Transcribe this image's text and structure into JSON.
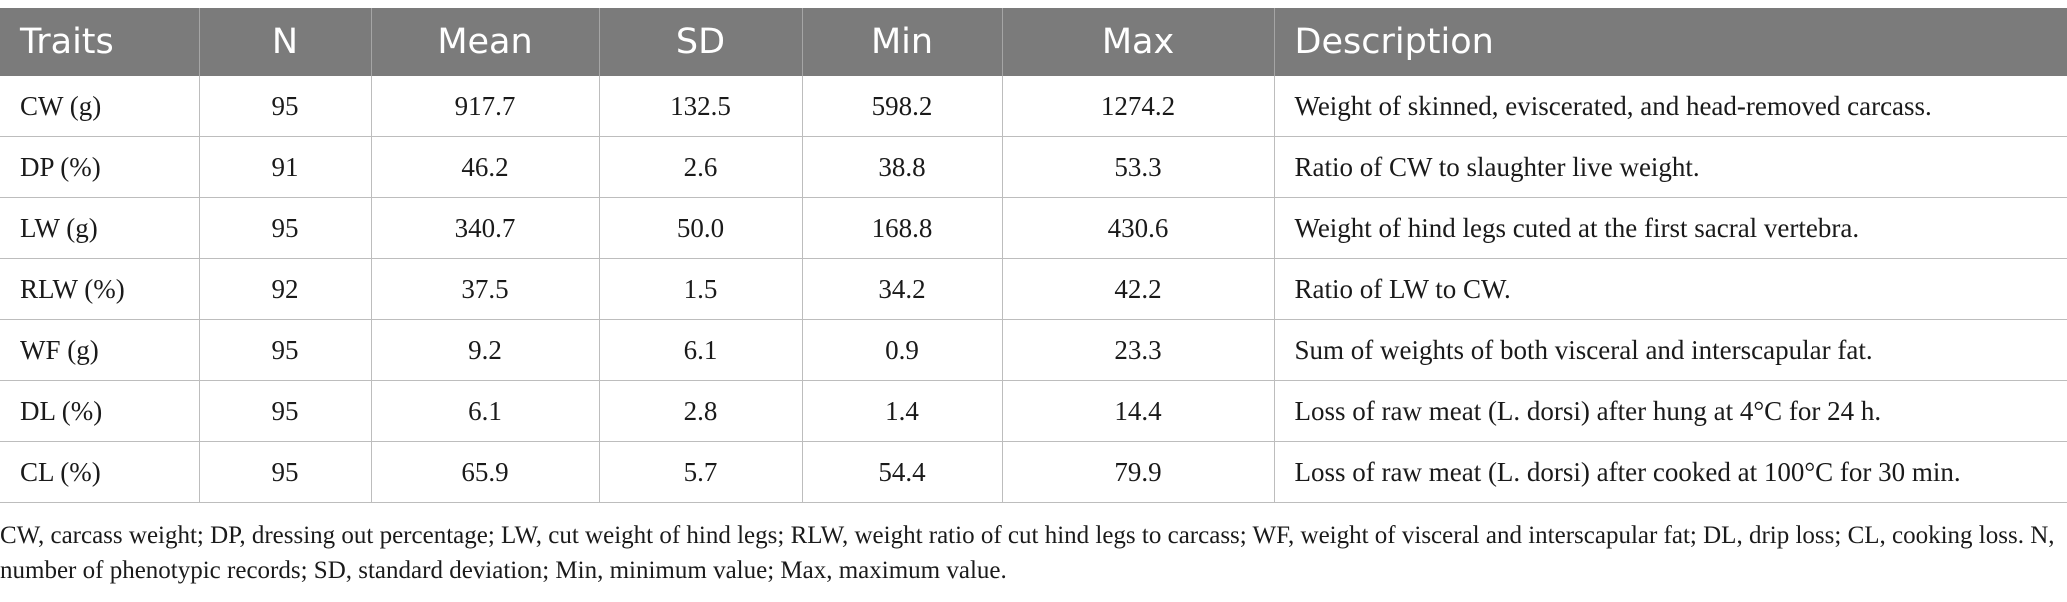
{
  "table": {
    "headers": [
      "Traits",
      "N",
      "Mean",
      "SD",
      "Min",
      "Max",
      "Description"
    ],
    "rows": [
      [
        "CW (g)",
        "95",
        "917.7",
        "132.5",
        "598.2",
        "1274.2",
        "Weight of skinned, eviscerated, and head-removed carcass."
      ],
      [
        "DP (%)",
        "91",
        "46.2",
        "2.6",
        "38.8",
        "53.3",
        "Ratio of CW to slaughter live weight."
      ],
      [
        "LW (g)",
        "95",
        "340.7",
        "50.0",
        "168.8",
        "430.6",
        "Weight of hind legs cuted at the first sacral vertebra."
      ],
      [
        "RLW (%)",
        "92",
        "37.5",
        "1.5",
        "34.2",
        "42.2",
        "Ratio of LW to CW."
      ],
      [
        "WF (g)",
        "95",
        "9.2",
        "6.1",
        "0.9",
        "23.3",
        "Sum of weights of both visceral and interscapular fat."
      ],
      [
        "DL (%)",
        "95",
        "6.1",
        "2.8",
        "1.4",
        "14.4",
        "Loss of raw meat (L. dorsi) after hung at 4°C for 24 h."
      ],
      [
        "CL (%)",
        "95",
        "65.9",
        "5.7",
        "54.4",
        "79.9",
        "Loss of raw meat (L. dorsi) after cooked at 100°C for 30 min."
      ]
    ]
  },
  "footnote": "CW, carcass weight; DP, dressing out percentage; LW, cut weight of hind legs; RLW, weight ratio of cut hind legs to carcass; WF, weight of visceral and interscapular fat; DL, drip loss; CL, cooking loss. N, number of phenotypic records; SD, standard deviation; Min, minimum value; Max, maximum value.",
  "colors": {
    "header_bg": "#7b7b7b",
    "header_text": "#ffffff",
    "grid_line": "#bdbdbd"
  }
}
